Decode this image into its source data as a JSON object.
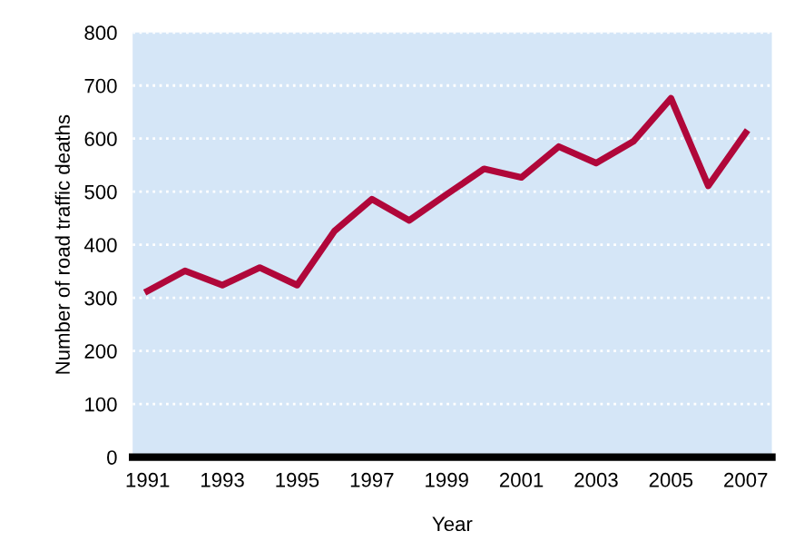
{
  "chart_data": {
    "type": "line",
    "xlabel": "Year",
    "ylabel": "Number of road traffic deaths",
    "x": [
      1991,
      1992,
      1993,
      1994,
      1995,
      1996,
      1997,
      1998,
      1999,
      2000,
      2001,
      2002,
      2003,
      2004,
      2005,
      2006,
      2007
    ],
    "series": [
      {
        "color": "#b0073a",
        "values": [
          313,
          351,
          324,
          357,
          324,
          426,
          486,
          446,
          495,
          543,
          527,
          585,
          554,
          595,
          676,
          511,
          611
        ]
      }
    ],
    "xlim": [
      1990.6,
      2007.7
    ],
    "xticks": [
      1991,
      1993,
      1995,
      1997,
      1999,
      2001,
      2003,
      2005,
      2007
    ],
    "ylim": [
      0,
      800
    ],
    "yticks": [
      0,
      100,
      200,
      300,
      400,
      500,
      600,
      700,
      800
    ],
    "grid": "y",
    "line_style": "solid",
    "marker": "none"
  }
}
